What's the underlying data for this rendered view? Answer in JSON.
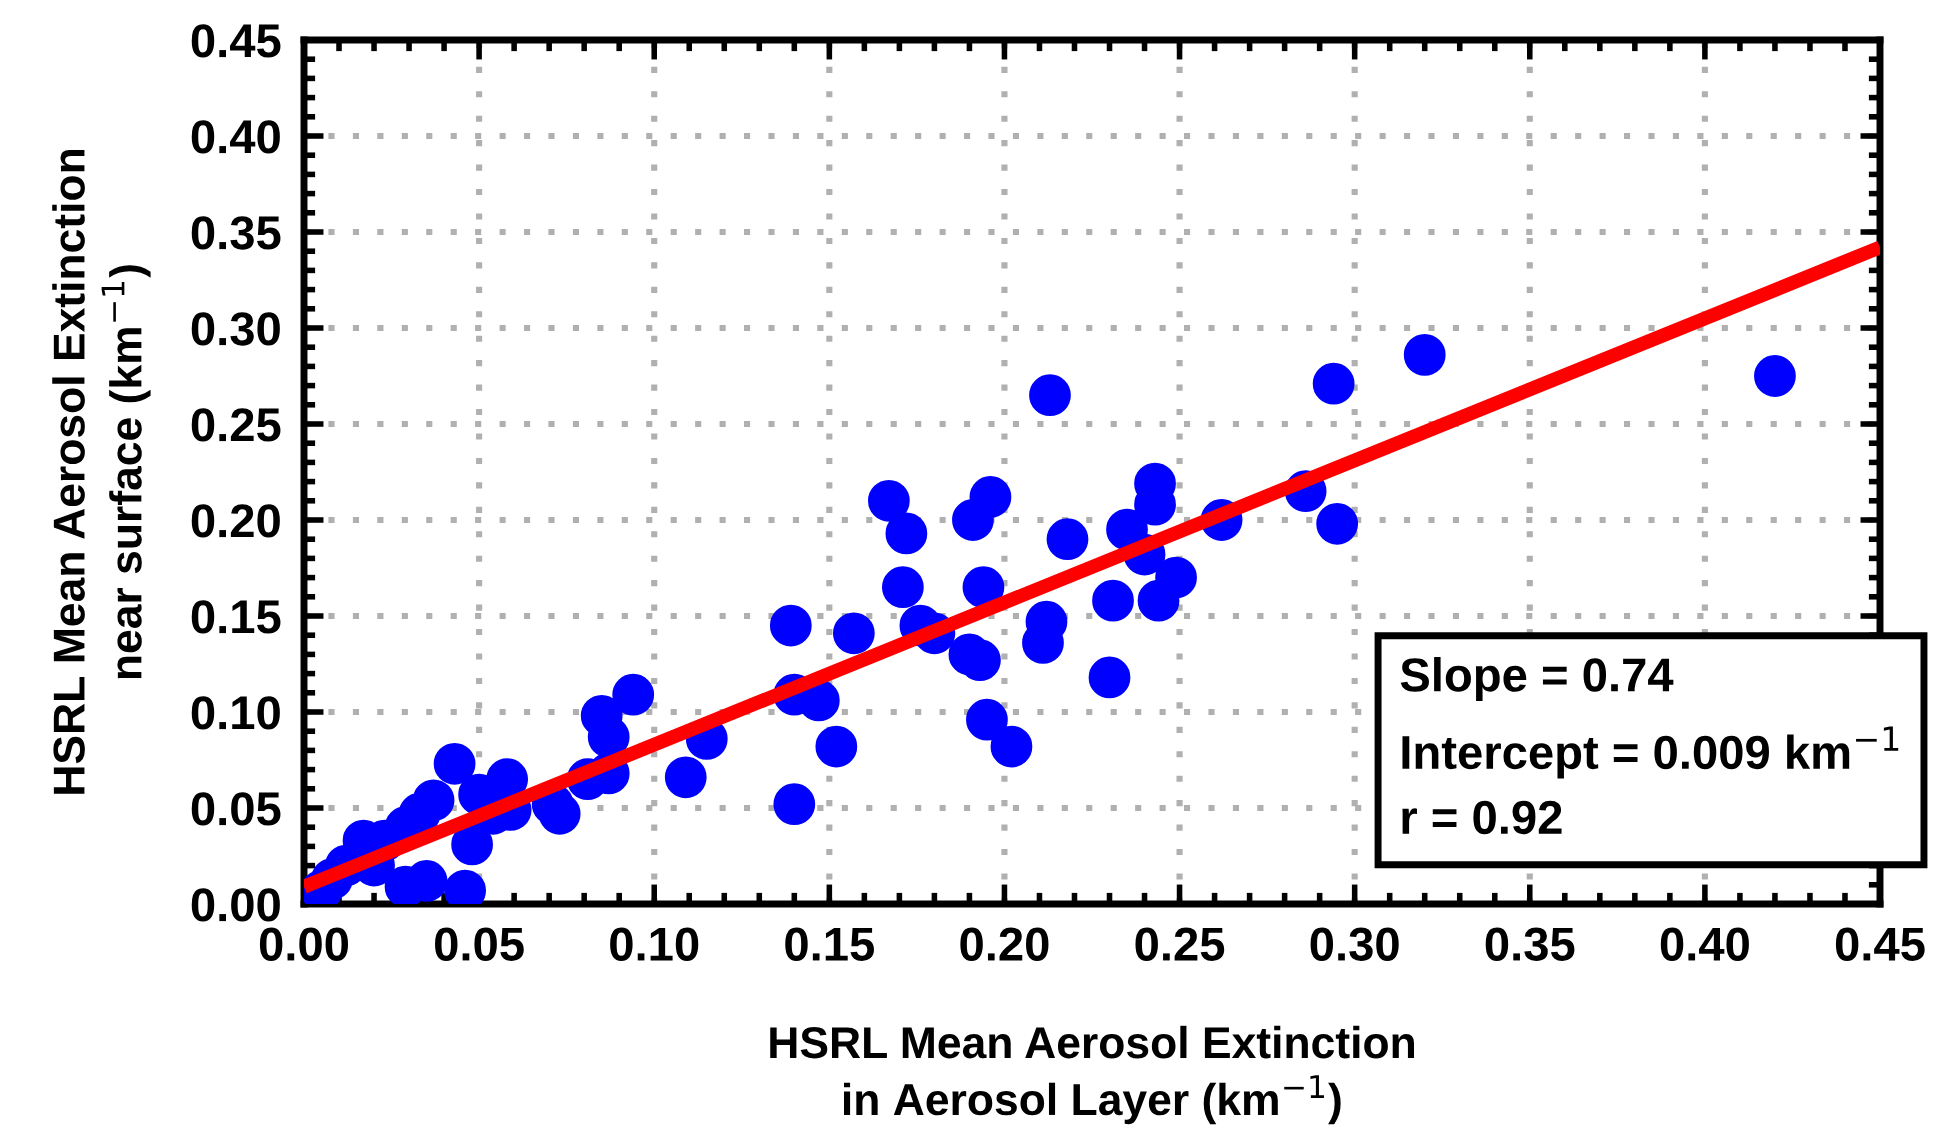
{
  "chart_data": {
    "type": "scatter",
    "xlabel": "HSRL Mean Aerosol Extinction\nin Aerosol Layer (km$^{−1}$)",
    "ylabel": "HSRL Mean Aerosol Extinction\nnear surface (km$^{−1}$)",
    "series": [
      {
        "color": "#0000ff",
        "marker": "circle",
        "x": [
          0.42,
          0.32,
          0.294,
          0.295,
          0.286,
          0.262,
          0.249,
          0.244,
          0.243,
          0.243,
          0.24,
          0.235,
          0.231,
          0.23,
          0.218,
          0.213,
          0.212,
          0.211,
          0.202,
          0.195,
          0.196,
          0.194,
          0.191,
          0.19,
          0.193,
          0.18,
          0.176,
          0.172,
          0.171,
          0.167,
          0.157,
          0.152,
          0.147,
          0.14,
          0.139,
          0.14,
          0.115,
          0.109,
          0.094,
          0.085,
          0.087,
          0.087,
          0.081,
          0.073,
          0.071,
          0.059,
          0.058,
          0.054,
          0.05,
          0.048,
          0.046,
          0.043,
          0.037,
          0.035,
          0.033,
          0.029,
          0.029,
          0.023,
          0.02,
          0.017,
          0.012,
          0.008,
          0.005
        ],
        "values": [
          0.275,
          0.286,
          0.271,
          0.198,
          0.215,
          0.2,
          0.17,
          0.158,
          0.219,
          0.208,
          0.182,
          0.195,
          0.158,
          0.118,
          0.19,
          0.265,
          0.147,
          0.136,
          0.082,
          0.096,
          0.212,
          0.165,
          0.2,
          0.13,
          0.127,
          0.141,
          0.145,
          0.193,
          0.165,
          0.21,
          0.141,
          0.082,
          0.106,
          0.109,
          0.145,
          0.052,
          0.086,
          0.066,
          0.109,
          0.098,
          0.087,
          0.068,
          0.065,
          0.047,
          0.052,
          0.049,
          0.065,
          0.047,
          0.057,
          0.031,
          0.007,
          0.073,
          0.054,
          0.012,
          0.047,
          0.04,
          0.009,
          0.033,
          0.02,
          0.033,
          0.02,
          0.013,
          0.007
        ]
      },
      {
        "type": "line",
        "marker": "none",
        "color": "#ff0000",
        "x": [
          0.0,
          0.45
        ],
        "values": [
          0.009,
          0.342
        ]
      }
    ],
    "annotations": [
      "Slope = 0.74",
      "Intercept = 0.009 km$^{−1}$",
      "r = 0.92"
    ],
    "xlim": [
      0,
      0.45
    ],
    "ylim": [
      0,
      0.45
    ],
    "xticks": [
      {
        "value": 0,
        "label": "0.00"
      },
      {
        "value": 0.05,
        "label": "0.05"
      },
      {
        "value": 0.1,
        "label": "0.10"
      },
      {
        "value": 0.15,
        "label": "0.15"
      },
      {
        "value": 0.2,
        "label": "0.20"
      },
      {
        "value": 0.25,
        "label": "0.25"
      },
      {
        "value": 0.3,
        "label": "0.30"
      },
      {
        "value": 0.35,
        "label": "0.35"
      },
      {
        "value": 0.4,
        "label": "0.40"
      },
      {
        "value": 0.45,
        "label": "0.45"
      }
    ],
    "yticks": [
      {
        "value": 0,
        "label": "0.00"
      },
      {
        "value": 0.05,
        "label": "0.05"
      },
      {
        "value": 0.1,
        "label": "0.10"
      },
      {
        "value": 0.15,
        "label": "0.15"
      },
      {
        "value": 0.2,
        "label": "0.20"
      },
      {
        "value": 0.25,
        "label": "0.25"
      },
      {
        "value": 0.3,
        "label": "0.30"
      },
      {
        "value": 0.35,
        "label": "0.35"
      },
      {
        "value": 0.4,
        "label": "0.40"
      },
      {
        "value": 0.45,
        "label": "0.45"
      }
    ],
    "grid": true
  }
}
